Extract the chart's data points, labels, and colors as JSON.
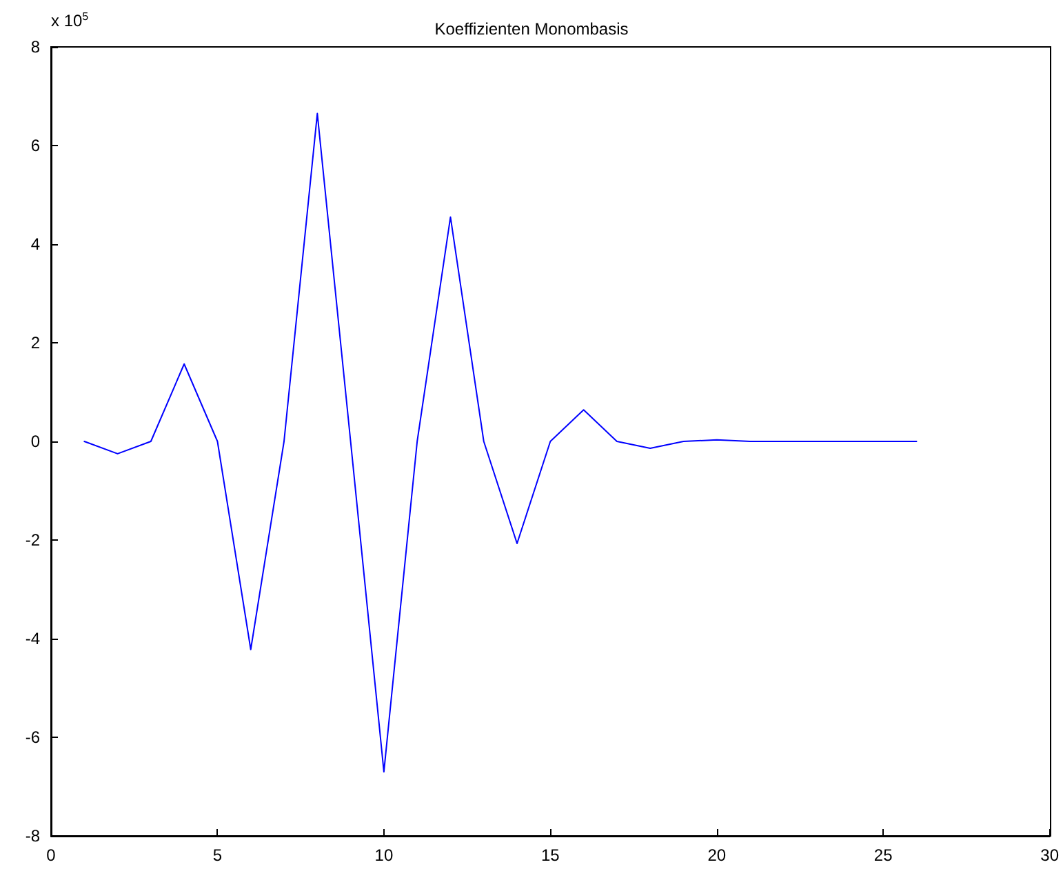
{
  "chart_data": {
    "type": "line",
    "title": "Koeffizienten Monombasis",
    "annotations": [
      "x 10$^{5}$"
    ],
    "x": [
      1,
      2,
      3,
      4,
      5,
      6,
      7,
      8,
      9,
      10,
      11,
      12,
      13,
      14,
      15,
      16,
      17,
      18,
      19,
      20,
      21,
      22,
      23,
      24,
      25,
      26
    ],
    "series": [
      {
        "color": "#0000ff",
        "values": [
          0,
          -0.25,
          0,
          1.57,
          0,
          -4.22,
          0,
          6.65,
          0,
          -6.7,
          0,
          4.55,
          0,
          -2.07,
          0,
          0.64,
          0,
          -0.14,
          0,
          0.03,
          0,
          0,
          0,
          0,
          0,
          0
        ]
      }
    ],
    "xlim": [
      0,
      30
    ],
    "xticks": [
      0,
      5,
      10,
      15,
      20,
      25,
      30
    ],
    "ylim": [
      -8,
      8
    ],
    "yticks": [
      -8,
      -6,
      -4,
      -2,
      0,
      2,
      4,
      6,
      8
    ],
    "grid": false,
    "marker": "none",
    "line_style": "solid"
  }
}
